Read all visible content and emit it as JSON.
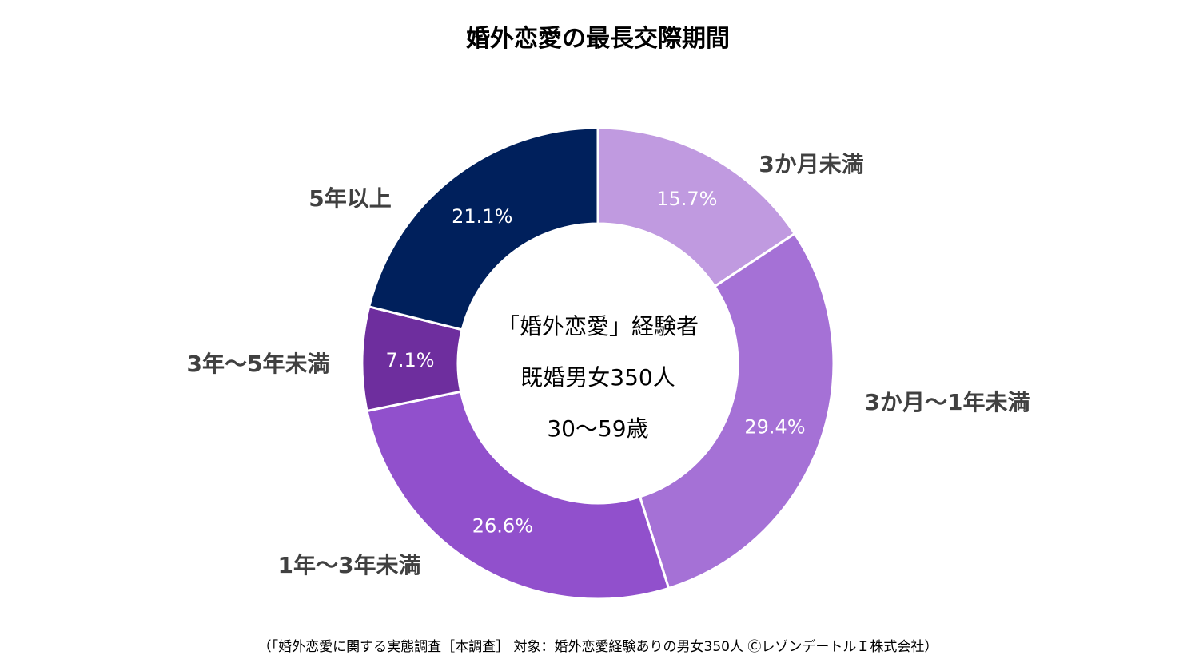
{
  "chart_data": {
    "type": "pie",
    "variant": "donut",
    "title": "婚外恋愛の最長交際期間",
    "slices": [
      {
        "label": "3か月未満",
        "value": 15.7,
        "value_label": "15.7%",
        "color": "#C09AE0"
      },
      {
        "label": "3か月～1年未満",
        "value": 29.4,
        "value_label": "29.4%",
        "color": "#A571D6"
      },
      {
        "label": "1年～3年未満",
        "value": 26.6,
        "value_label": "26.6%",
        "color": "#9150CC"
      },
      {
        "label": "3年～5年未満",
        "value": 7.1,
        "value_label": "7.1%",
        "color": "#6E2E9E"
      },
      {
        "label": "5年以上",
        "value": 21.1,
        "value_label": "21.1%",
        "color": "#00205C"
      }
    ],
    "center_text": [
      "「婚外恋愛」経験者",
      "既婚男女350人",
      "30～59歳"
    ],
    "footnote": "（「婚外恋愛に関する実態調査［本調査］ 対象：婚外恋愛経験ありの男女350人 ⒸレゾンデートルＩ株式会社）"
  }
}
